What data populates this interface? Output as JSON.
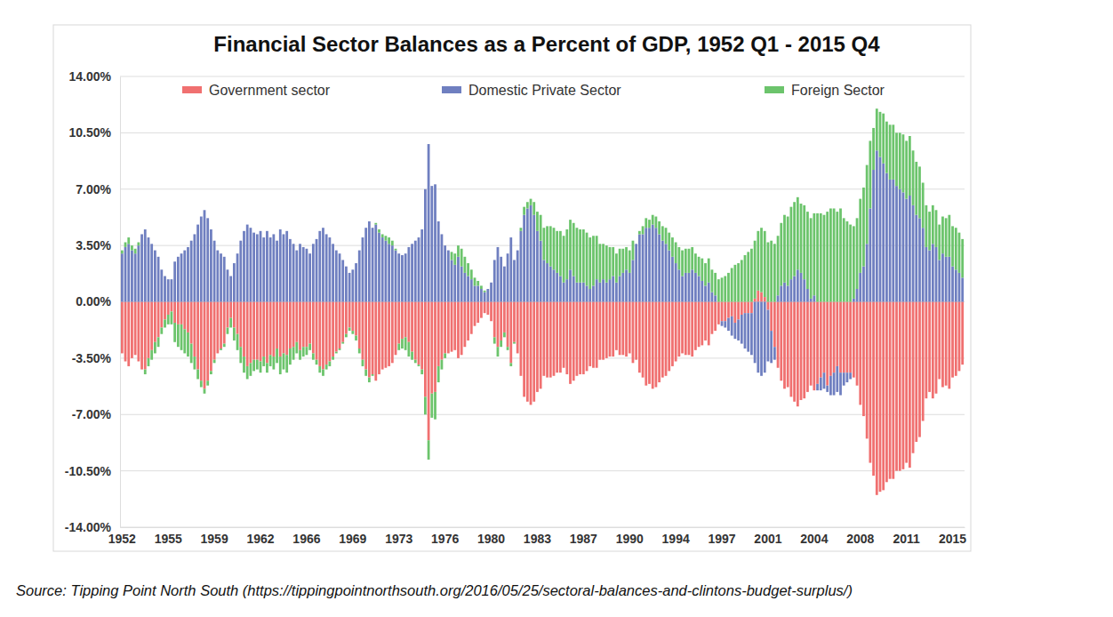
{
  "chart_data": {
    "type": "bar",
    "title": "Financial Sector Balances as a Percent of GDP, 1952 Q1 - 2015 Q4",
    "source": "Source: Tipping Point North South (https://tippingpointnorthsouth.org/2016/05/25/sectoral-balances-and-clintons-budget-surplus/)",
    "stacked": true,
    "grid": true,
    "legend": "top",
    "ylim": [
      -14,
      14
    ],
    "yticks": [
      {
        "value": -14,
        "label": "-14.00%"
      },
      {
        "value": -10.5,
        "label": "-10.50%"
      },
      {
        "value": -7,
        "label": "-7.00%"
      },
      {
        "value": -3.5,
        "label": "-3.50%"
      },
      {
        "value": 0,
        "label": "0.00%"
      },
      {
        "value": 3.5,
        "label": "3.50%"
      },
      {
        "value": 7,
        "label": "7.00%"
      },
      {
        "value": 10.5,
        "label": "10.50%"
      },
      {
        "value": 14,
        "label": "14.00%"
      }
    ],
    "categories": [
      "1952",
      null,
      null,
      null,
      null,
      null,
      null,
      null,
      null,
      null,
      null,
      null,
      null,
      null,
      "1955",
      null,
      null,
      null,
      null,
      null,
      null,
      null,
      null,
      null,
      null,
      null,
      null,
      null,
      "1959",
      null,
      null,
      null,
      null,
      null,
      null,
      null,
      null,
      null,
      null,
      null,
      null,
      null,
      "1962",
      null,
      null,
      null,
      null,
      null,
      null,
      null,
      null,
      null,
      null,
      null,
      null,
      null,
      "1966",
      null,
      null,
      null,
      null,
      null,
      null,
      null,
      null,
      null,
      null,
      null,
      null,
      null,
      "1969",
      null,
      null,
      null,
      null,
      null,
      null,
      null,
      null,
      null,
      null,
      null,
      null,
      null,
      "1973",
      null,
      null,
      null,
      null,
      null,
      null,
      null,
      null,
      null,
      null,
      null,
      null,
      null,
      "1976",
      null,
      null,
      null,
      null,
      null,
      null,
      null,
      null,
      null,
      null,
      null,
      null,
      null,
      "1980",
      null,
      null,
      null,
      null,
      null,
      null,
      null,
      null,
      null,
      null,
      null,
      null,
      null,
      "1983",
      null,
      null,
      null,
      null,
      null,
      null,
      null,
      null,
      null,
      null,
      null,
      null,
      null,
      "1987",
      null,
      null,
      null,
      null,
      null,
      null,
      null,
      null,
      null,
      null,
      null,
      null,
      null,
      "1990",
      null,
      null,
      null,
      null,
      null,
      null,
      null,
      null,
      null,
      null,
      null,
      null,
      null,
      "1994",
      null,
      null,
      null,
      null,
      null,
      null,
      null,
      null,
      null,
      null,
      null,
      null,
      null,
      "1997",
      null,
      null,
      null,
      null,
      null,
      null,
      null,
      null,
      null,
      null,
      null,
      null,
      null,
      "2001",
      null,
      null,
      null,
      null,
      null,
      null,
      null,
      null,
      null,
      null,
      null,
      null,
      null,
      "2004",
      null,
      null,
      null,
      null,
      null,
      null,
      null,
      null,
      null,
      null,
      null,
      null,
      null,
      "2008",
      null,
      null,
      null,
      null,
      null,
      null,
      null,
      null,
      null,
      null,
      null,
      null,
      null,
      "2011",
      null,
      null,
      null,
      null,
      null,
      null,
      null,
      null,
      null,
      null,
      null,
      null,
      null,
      "2015",
      null,
      null,
      null
    ],
    "series": [
      {
        "name": "Government sector",
        "color": "#f07070",
        "values": [
          -3.2,
          -3.7,
          -4.0,
          -3.5,
          -3.3,
          -3.7,
          -4.2,
          -4.2,
          -3.5,
          -3.0,
          -2.5,
          -2.2,
          -1.6,
          -1.1,
          -0.8,
          -0.6,
          -1.3,
          -1.4,
          -1.4,
          -1.7,
          -1.9,
          -2.6,
          -3.4,
          -4.2,
          -4.9,
          -5.4,
          -4.9,
          -4.3,
          -3.6,
          -3.2,
          -2.9,
          -2.6,
          -1.6,
          -1.0,
          -1.6,
          -2.0,
          -2.8,
          -3.4,
          -4.0,
          -3.8,
          -3.6,
          -3.6,
          -3.7,
          -3.4,
          -3.8,
          -3.3,
          -3.4,
          -2.9,
          -3.4,
          -3.2,
          -3.3,
          -2.9,
          -2.8,
          -2.5,
          -3.0,
          -2.8,
          -2.8,
          -2.6,
          -3.2,
          -3.6,
          -4.0,
          -4.2,
          -3.9,
          -3.7,
          -3.4,
          -3.1,
          -2.9,
          -2.5,
          -2.0,
          -1.6,
          -1.8,
          -2.1,
          -2.9,
          -3.6,
          -4.2,
          -4.7,
          -4.5,
          -4.9,
          -4.5,
          -4.2,
          -4.1,
          -4.0,
          -3.8,
          -3.3,
          -2.6,
          -2.3,
          -2.2,
          -2.5,
          -3.1,
          -3.6,
          -3.9,
          -4.2,
          -5.9,
          -8.6,
          -5.7,
          -5.6,
          -4.0,
          -3.6,
          -3.2,
          -3.2,
          -3.1,
          -3.0,
          -3.5,
          -3.3,
          -2.8,
          -2.4,
          -2.0,
          -1.5,
          -1.3,
          -1.0,
          -0.7,
          -0.8,
          -1.2,
          -2.2,
          -2.8,
          -2.4,
          -1.9,
          -2.8,
          -3.8,
          -2.5,
          -3.2,
          -4.6,
          -5.9,
          -6.2,
          -6.4,
          -6.2,
          -5.6,
          -5.4,
          -4.6,
          -4.7,
          -4.7,
          -4.6,
          -4.4,
          -4.4,
          -4.1,
          -4.5,
          -5.1,
          -4.9,
          -4.6,
          -4.5,
          -4.5,
          -4.3,
          -4.0,
          -4.1,
          -4.1,
          -3.6,
          -3.6,
          -3.5,
          -3.4,
          -3.4,
          -3.0,
          -3.3,
          -3.3,
          -3.4,
          -3.2,
          -3.8,
          -3.6,
          -4.4,
          -4.7,
          -5.2,
          -5.1,
          -5.4,
          -5.3,
          -5.0,
          -4.7,
          -4.6,
          -4.3,
          -4.0,
          -3.7,
          -3.4,
          -3.2,
          -3.3,
          -3.3,
          -3.4,
          -3.0,
          -2.8,
          -2.7,
          -2.4,
          -2.7,
          -2.0,
          -1.8,
          -1.4,
          -1.2,
          -1.2,
          -1.0,
          -0.9,
          -1.3,
          -1.1,
          -0.8,
          -0.7,
          -0.7,
          -0.7,
          0.2,
          0.7,
          0.6,
          0.3,
          -0.5,
          -1.8,
          -2.8,
          -4.1,
          -4.9,
          -5.4,
          -5.3,
          -5.9,
          -6.2,
          -6.5,
          -6.1,
          -6.0,
          -5.6,
          -5.2,
          -5.5,
          -5.1,
          -4.7,
          -4.4,
          -5.2,
          -4.6,
          -4.4,
          -4.0,
          -4.4,
          -4.4,
          -4.4,
          -4.4,
          -4.7,
          -5.2,
          -6.4,
          -7.1,
          -8.5,
          -10.0,
          -10.8,
          -12.0,
          -11.8,
          -11.7,
          -11.2,
          -11.0,
          -11.0,
          -10.5,
          -10.5,
          -10.4,
          -10.0,
          -10.3,
          -9.4,
          -8.7,
          -8.4,
          -7.4,
          -6.0,
          -5.6,
          -6.0,
          -5.7,
          -4.8,
          -5.3,
          -5.2,
          -5.4,
          -4.7,
          -4.6,
          -4.3,
          -3.9
        ]
      },
      {
        "name": "Domestic Private Sector",
        "color": "#6f7fc0",
        "values": [
          3.0,
          3.4,
          3.6,
          3.2,
          3.0,
          3.5,
          4.2,
          4.5,
          4.0,
          3.6,
          3.2,
          2.8,
          2.0,
          1.6,
          1.4,
          1.4,
          2.5,
          2.8,
          3.0,
          3.2,
          3.4,
          3.8,
          4.2,
          4.8,
          5.3,
          5.7,
          5.2,
          4.5,
          3.8,
          3.2,
          3.0,
          2.8,
          2.0,
          1.6,
          2.4,
          3.0,
          3.8,
          4.4,
          4.8,
          4.6,
          4.3,
          4.2,
          4.4,
          4.0,
          4.4,
          4.0,
          4.2,
          3.8,
          4.5,
          4.2,
          4.4,
          3.9,
          3.6,
          3.2,
          3.6,
          3.4,
          3.3,
          3.0,
          3.6,
          3.9,
          4.4,
          4.6,
          4.2,
          4.0,
          3.6,
          3.2,
          3.0,
          2.6,
          2.2,
          1.8,
          2.0,
          2.4,
          3.2,
          4.0,
          4.6,
          5.0,
          4.6,
          4.8,
          4.3,
          4.0,
          3.8,
          3.6,
          3.5,
          3.2,
          3.0,
          2.9,
          3.0,
          3.4,
          3.6,
          3.8,
          4.0,
          4.5,
          7.0,
          9.8,
          7.2,
          7.3,
          5.0,
          4.2,
          3.5,
          3.2,
          2.6,
          2.3,
          2.8,
          2.2,
          1.8,
          1.6,
          1.4,
          1.0,
          1.0,
          0.8,
          0.6,
          0.8,
          1.2,
          2.6,
          3.4,
          2.8,
          2.2,
          3.0,
          4.0,
          2.6,
          3.2,
          4.4,
          5.4,
          5.8,
          6.0,
          5.4,
          4.4,
          3.8,
          2.6,
          2.4,
          2.2,
          2.0,
          1.8,
          1.6,
          1.2,
          1.4,
          2.0,
          1.6,
          1.2,
          1.2,
          1.2,
          1.0,
          0.8,
          1.0,
          1.4,
          1.2,
          1.4,
          1.2,
          1.4,
          1.6,
          1.2,
          1.6,
          1.8,
          2.0,
          1.8,
          2.6,
          3.6,
          4.2,
          4.2,
          4.6,
          4.6,
          4.8,
          4.6,
          4.2,
          3.8,
          3.6,
          3.2,
          2.8,
          2.4,
          2.0,
          1.6,
          1.8,
          1.8,
          2.0,
          1.8,
          1.6,
          1.3,
          1.0,
          1.2,
          0.6,
          0.4,
          0.0,
          -0.3,
          -0.4,
          -0.8,
          -1.2,
          -1.0,
          -1.3,
          -1.8,
          -2.2,
          -2.4,
          -2.6,
          -3.8,
          -4.4,
          -4.6,
          -4.4,
          -3.2,
          -2.0,
          -0.8,
          0.4,
          1.0,
          1.2,
          1.0,
          1.4,
          1.6,
          2.0,
          1.8,
          1.4,
          0.8,
          0.2,
          0.4,
          -0.4,
          -0.8,
          -1.0,
          -0.4,
          -1.2,
          -1.4,
          -1.6,
          -1.4,
          -0.8,
          -0.6,
          -0.4,
          0.2,
          0.8,
          1.8,
          2.2,
          3.6,
          5.8,
          8.2,
          9.4,
          9.0,
          8.6,
          8.0,
          7.6,
          7.6,
          7.2,
          7.0,
          6.8,
          6.4,
          6.6,
          6.0,
          5.4,
          5.2,
          4.6,
          3.4,
          3.2,
          3.6,
          3.4,
          2.6,
          3.0,
          2.8,
          2.8,
          2.2,
          2.0,
          1.8,
          1.5
        ]
      },
      {
        "name": "Foreign Sector",
        "color": "#6cc46c",
        "values": [
          0.2,
          0.3,
          0.4,
          0.3,
          0.3,
          0.2,
          0.0,
          -0.3,
          -0.5,
          -0.6,
          -0.7,
          -0.6,
          -0.4,
          -0.5,
          -0.6,
          -0.8,
          -1.2,
          -1.4,
          -1.6,
          -1.5,
          -1.5,
          -1.2,
          -0.8,
          -0.6,
          -0.4,
          -0.3,
          -0.3,
          -0.2,
          -0.2,
          0.0,
          -0.1,
          -0.2,
          -0.4,
          -0.6,
          -0.8,
          -1.0,
          -1.0,
          -1.0,
          -0.8,
          -0.8,
          -0.7,
          -0.6,
          -0.7,
          -0.6,
          -0.6,
          -0.7,
          -0.8,
          -0.9,
          -1.1,
          -1.0,
          -1.1,
          -1.0,
          -0.8,
          -0.7,
          -0.6,
          -0.6,
          -0.5,
          -0.4,
          -0.4,
          -0.3,
          -0.4,
          -0.4,
          -0.3,
          -0.3,
          -0.2,
          -0.1,
          -0.1,
          -0.1,
          -0.2,
          -0.2,
          -0.2,
          -0.3,
          -0.3,
          -0.4,
          -0.4,
          -0.3,
          -0.1,
          0.1,
          0.2,
          0.2,
          0.3,
          0.4,
          0.3,
          0.1,
          -0.4,
          -0.6,
          -0.8,
          -0.9,
          -0.5,
          -0.2,
          -0.1,
          -0.3,
          -1.1,
          -1.2,
          -1.5,
          -1.7,
          -1.0,
          -0.6,
          -0.3,
          0.0,
          0.5,
          0.7,
          0.7,
          1.1,
          1.0,
          0.8,
          0.6,
          0.5,
          0.3,
          0.2,
          0.1,
          0.0,
          0.0,
          -0.4,
          -0.6,
          -0.4,
          -0.3,
          -0.2,
          -0.2,
          -0.1,
          0.0,
          0.2,
          0.5,
          0.4,
          0.4,
          0.8,
          1.2,
          1.6,
          2.0,
          2.3,
          2.5,
          2.6,
          2.6,
          2.8,
          2.9,
          3.1,
          3.1,
          3.3,
          3.4,
          3.3,
          3.3,
          3.3,
          3.2,
          3.1,
          2.7,
          2.4,
          2.2,
          2.3,
          2.0,
          1.8,
          1.8,
          1.7,
          1.5,
          1.4,
          1.4,
          1.2,
          0.0,
          0.2,
          0.5,
          0.6,
          0.5,
          0.6,
          0.7,
          0.8,
          0.9,
          1.0,
          1.1,
          1.2,
          1.3,
          1.4,
          1.6,
          1.5,
          1.5,
          1.4,
          1.2,
          1.2,
          1.4,
          1.4,
          1.5,
          1.4,
          1.4,
          1.4,
          1.5,
          1.6,
          1.8,
          2.1,
          2.3,
          2.4,
          2.6,
          2.9,
          3.1,
          3.3,
          3.6,
          3.7,
          4.0,
          4.1,
          3.7,
          3.8,
          3.6,
          3.7,
          3.9,
          4.2,
          4.3,
          4.5,
          4.6,
          4.5,
          4.3,
          4.6,
          4.8,
          5.0,
          5.1,
          5.5,
          5.5,
          5.4,
          5.6,
          5.8,
          5.8,
          5.6,
          5.8,
          5.2,
          5.0,
          4.8,
          4.5,
          4.4,
          4.6,
          4.9,
          4.9,
          4.2,
          2.6,
          2.6,
          2.8,
          3.1,
          3.2,
          3.4,
          3.4,
          3.3,
          3.5,
          3.6,
          3.6,
          3.7,
          3.4,
          3.3,
          3.2,
          2.8,
          2.6,
          2.4,
          2.4,
          2.3,
          2.2,
          2.3,
          2.4,
          2.6,
          2.5,
          2.6,
          2.5,
          2.4
        ]
      }
    ]
  }
}
